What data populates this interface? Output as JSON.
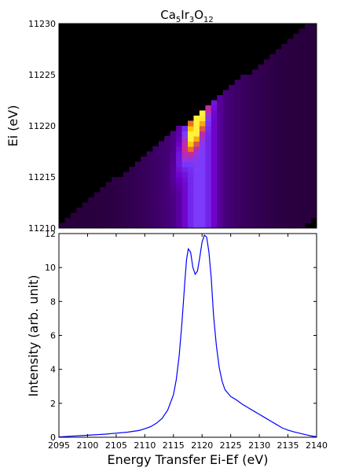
{
  "chart_data": [
    {
      "type": "heatmap",
      "title": "Ca5Ir3O12",
      "title_parts": {
        "a": "Ca",
        "a_sub": "5",
        "b": "Ir",
        "b_sub": "3",
        "c": "O",
        "c_sub": "12"
      },
      "xlabel": "",
      "ylabel": "Ei (eV)",
      "xlim": [
        2095,
        2140
      ],
      "ylim": [
        11210,
        11230
      ],
      "yticks": [
        "11210",
        "11215",
        "11220",
        "11225",
        "11230"
      ],
      "colormap": "black-purple-blue-orange-yellow",
      "grid": false,
      "note_structure": "band of rows shifted diagonally; peak intensity near energy transfer 2117-2121 eV at Ei 11217-11223 eV",
      "peak_centers": [
        {
          "ei": 11216,
          "et": 2117.5,
          "intensity": 0.85
        },
        {
          "ei": 11218,
          "et": 2118.0,
          "intensity": 0.9
        },
        {
          "ei": 11220,
          "et": 2119.5,
          "intensity": 0.95
        },
        {
          "ei": 11222,
          "et": 2120.5,
          "intensity": 1.0
        },
        {
          "ei": 11224,
          "et": 2121.0,
          "intensity": 0.65
        }
      ]
    },
    {
      "type": "line",
      "title": "",
      "xlabel": "Energy Transfer Ei-Ef (eV)",
      "ylabel": "Intensity (arb. unit)",
      "xlim": [
        2095,
        2140
      ],
      "ylim": [
        0,
        12
      ],
      "xticks": [
        "2095",
        "2100",
        "2105",
        "2110",
        "2115",
        "2120",
        "2125",
        "2130",
        "2135",
        "2140"
      ],
      "yticks": [
        "0",
        "2",
        "4",
        "6",
        "8",
        "10",
        "12"
      ],
      "grid": false,
      "color": "#0000ff",
      "series": [
        {
          "x": [
            2095,
            2097,
            2099,
            2101,
            2103,
            2105,
            2107,
            2109,
            2110,
            2111,
            2112,
            2113,
            2114,
            2115,
            2115.5,
            2116,
            2116.5,
            2117,
            2117.3,
            2117.6,
            2118,
            2118.4,
            2118.8,
            2119.2,
            2119.6,
            2120,
            2120.4,
            2120.8,
            2121.2,
            2121.6,
            2122,
            2122.5,
            2123,
            2123.5,
            2124,
            2125,
            2126,
            2127,
            2128,
            2129,
            2130,
            2131,
            2132,
            2133,
            2134,
            2135,
            2136,
            2137,
            2138,
            2139,
            2140
          ],
          "values": [
            0.02,
            0.06,
            0.1,
            0.14,
            0.18,
            0.24,
            0.3,
            0.4,
            0.5,
            0.62,
            0.82,
            1.1,
            1.6,
            2.5,
            3.4,
            4.8,
            6.8,
            9.2,
            10.5,
            11.1,
            10.9,
            10.0,
            9.6,
            9.8,
            10.6,
            11.5,
            11.9,
            11.8,
            10.9,
            9.4,
            7.2,
            5.4,
            4.1,
            3.3,
            2.8,
            2.4,
            2.2,
            1.95,
            1.75,
            1.55,
            1.35,
            1.15,
            0.95,
            0.75,
            0.55,
            0.42,
            0.32,
            0.24,
            0.16,
            0.08,
            0.03
          ]
        }
      ]
    }
  ]
}
